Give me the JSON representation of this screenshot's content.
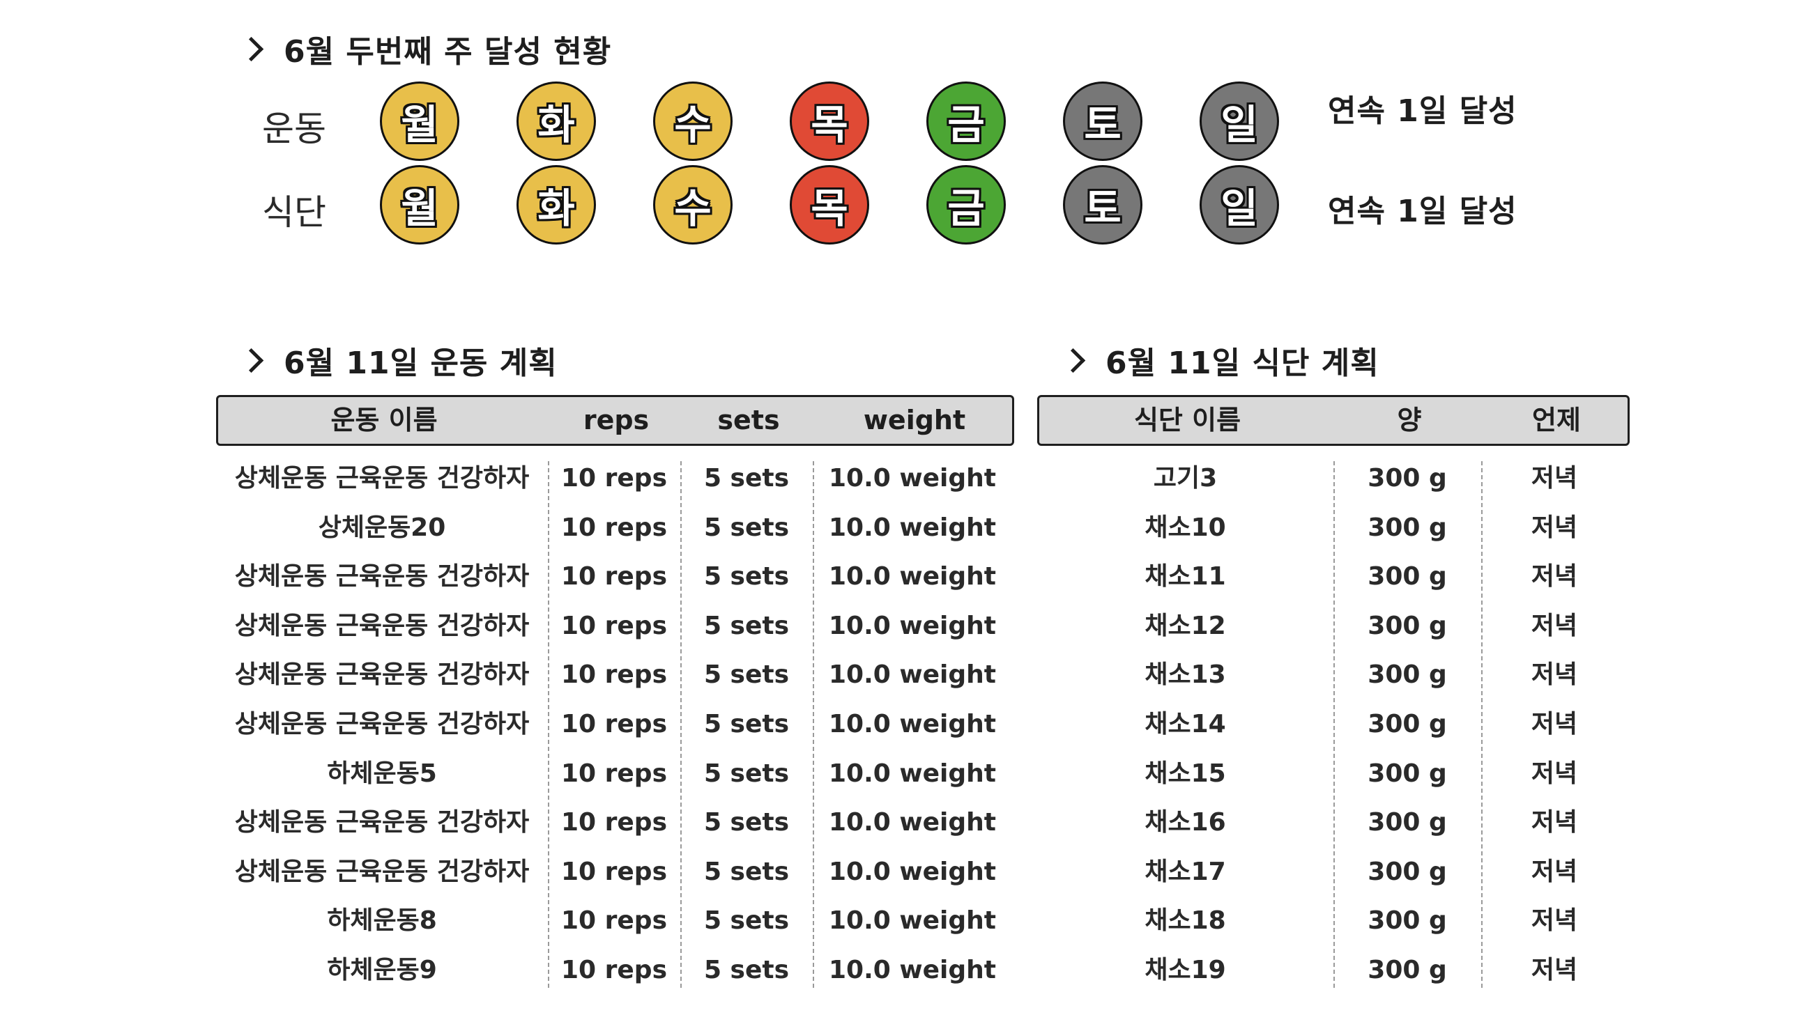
{
  "achievement": {
    "title": "6월 두번째 주 달성 현황",
    "colors": {
      "yellow": "#e8bf4a",
      "red": "#e04a35",
      "green": "#4ca634",
      "gray": "#777777"
    },
    "tracks": [
      {
        "label": "운동",
        "streak": "연속 1일 달성",
        "days": [
          {
            "day": "월",
            "status": "yellow"
          },
          {
            "day": "화",
            "status": "yellow"
          },
          {
            "day": "수",
            "status": "yellow"
          },
          {
            "day": "목",
            "status": "red"
          },
          {
            "day": "금",
            "status": "green"
          },
          {
            "day": "토",
            "status": "gray"
          },
          {
            "day": "일",
            "status": "gray"
          }
        ]
      },
      {
        "label": "식단",
        "streak": "연속 1일 달성",
        "days": [
          {
            "day": "월",
            "status": "yellow"
          },
          {
            "day": "화",
            "status": "yellow"
          },
          {
            "day": "수",
            "status": "yellow"
          },
          {
            "day": "목",
            "status": "red"
          },
          {
            "day": "금",
            "status": "green"
          },
          {
            "day": "토",
            "status": "gray"
          },
          {
            "day": "일",
            "status": "gray"
          }
        ]
      }
    ]
  },
  "exercise_plan": {
    "title": "6월 11일 운동 계획",
    "headers": [
      "운동 이름",
      "reps",
      "sets",
      "weight"
    ],
    "rows": [
      [
        "상체운동 근육운동 건강하자",
        "10 reps",
        "5 sets",
        "10.0 weight"
      ],
      [
        "상체운동20",
        "10 reps",
        "5 sets",
        "10.0 weight"
      ],
      [
        "상체운동 근육운동 건강하자",
        "10 reps",
        "5 sets",
        "10.0 weight"
      ],
      [
        "상체운동 근육운동 건강하자",
        "10 reps",
        "5 sets",
        "10.0 weight"
      ],
      [
        "상체운동 근육운동 건강하자",
        "10 reps",
        "5 sets",
        "10.0 weight"
      ],
      [
        "상체운동 근육운동 건강하자",
        "10 reps",
        "5 sets",
        "10.0 weight"
      ],
      [
        "하체운동5",
        "10 reps",
        "5 sets",
        "10.0 weight"
      ],
      [
        "상체운동 근육운동 건강하자",
        "10 reps",
        "5 sets",
        "10.0 weight"
      ],
      [
        "상체운동 근육운동 건강하자",
        "10 reps",
        "5 sets",
        "10.0 weight"
      ],
      [
        "하체운동8",
        "10 reps",
        "5 sets",
        "10.0 weight"
      ],
      [
        "하체운동9",
        "10 reps",
        "5 sets",
        "10.0 weight"
      ]
    ]
  },
  "diet_plan": {
    "title": "6월 11일 식단 계획",
    "headers": [
      "식단 이름",
      "양",
      "언제"
    ],
    "rows": [
      [
        "고기3",
        "300 g",
        "저녁"
      ],
      [
        "채소10",
        "300 g",
        "저녁"
      ],
      [
        "채소11",
        "300 g",
        "저녁"
      ],
      [
        "채소12",
        "300 g",
        "저녁"
      ],
      [
        "채소13",
        "300 g",
        "저녁"
      ],
      [
        "채소14",
        "300 g",
        "저녁"
      ],
      [
        "채소15",
        "300 g",
        "저녁"
      ],
      [
        "채소16",
        "300 g",
        "저녁"
      ],
      [
        "채소17",
        "300 g",
        "저녁"
      ],
      [
        "채소18",
        "300 g",
        "저녁"
      ],
      [
        "채소19",
        "300 g",
        "저녁"
      ]
    ]
  }
}
